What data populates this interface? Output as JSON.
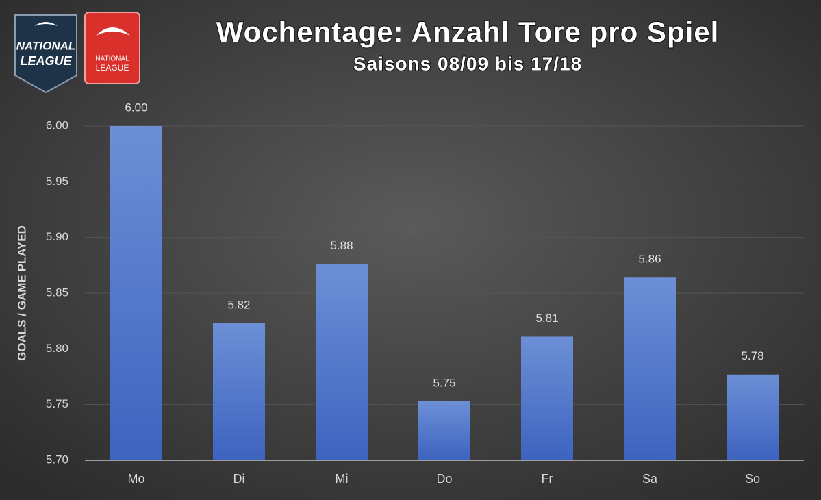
{
  "logos": [
    [
      "NATIONAL",
      "LEAGUE"
    ],
    [
      "NATIONAL",
      "LEAGUE"
    ]
  ],
  "chart_data": {
    "type": "bar",
    "title": "Wochentage: Anzahl Tore pro Spiel",
    "subtitle": "Saisons 08/09 bis 17/18",
    "y_label": "GOALS / GAME PLAYED",
    "categories": [
      "Mo",
      "Di",
      "Mi",
      "Do",
      "Fr",
      "Sa",
      "So"
    ],
    "values": [
      6.0,
      5.823,
      5.876,
      5.753,
      5.811,
      5.864,
      5.777
    ],
    "value_labels": [
      "6.00",
      "5.82",
      "5.88",
      "5.75",
      "5.81",
      "5.86",
      "5.78"
    ],
    "color": "#4a72cc",
    "ylim": [
      5.7,
      6.0
    ],
    "yticks": [
      {
        "value": 5.7,
        "label": "5.70"
      },
      {
        "value": 5.75,
        "label": "5.75"
      },
      {
        "value": 5.8,
        "label": "5.80"
      },
      {
        "value": 5.85,
        "label": "5.85"
      },
      {
        "value": 5.9,
        "label": "5.90"
      },
      {
        "value": 5.95,
        "label": "5.95"
      },
      {
        "value": 6.0,
        "label": "6.00"
      }
    ],
    "grid": true
  }
}
